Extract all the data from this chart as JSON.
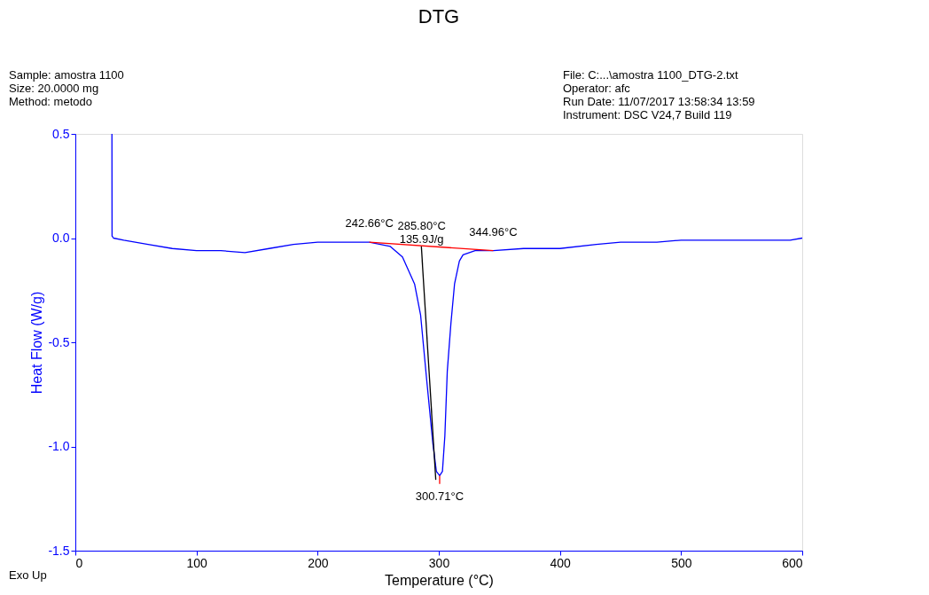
{
  "chart_data": {
    "type": "line",
    "title": "DTG",
    "xlabel": "Temperature (°C)",
    "ylabel": "Heat Flow (W/g)",
    "xlim": [
      0,
      600
    ],
    "xticks": [
      0,
      100,
      200,
      300,
      400,
      500,
      600
    ],
    "ylim": [
      -1.5,
      0.5
    ],
    "yticks": [
      {
        "value": -1.5,
        "label": "-1.5"
      },
      {
        "value": -1.0,
        "label": "-1.0"
      },
      {
        "value": -0.5,
        "label": "-0.5"
      },
      {
        "value": 0,
        "label": "0.0"
      },
      {
        "value": 0.5,
        "label": "0.5"
      }
    ],
    "grid": false,
    "series": [
      {
        "color": "#0000ff",
        "x": [
          30.2,
          30.3,
          31.5,
          40,
          60,
          80,
          100,
          120,
          140,
          160,
          180,
          200,
          220,
          242.66,
          260,
          270,
          280,
          285,
          290,
          295,
          298,
          300.71,
          303,
          305,
          307,
          310,
          313,
          317,
          320,
          330,
          345,
          370,
          400,
          430,
          450,
          480,
          500,
          530,
          560,
          590,
          600
        ],
        "values": [
          0.5,
          0.01,
          0.0,
          -0.01,
          -0.03,
          -0.05,
          -0.06,
          -0.06,
          -0.07,
          -0.05,
          -0.03,
          -0.02,
          -0.02,
          -0.02,
          -0.04,
          -0.09,
          -0.22,
          -0.37,
          -0.68,
          -0.98,
          -1.12,
          -1.14,
          -1.12,
          -0.95,
          -0.64,
          -0.41,
          -0.22,
          -0.11,
          -0.08,
          -0.06,
          -0.06,
          -0.05,
          -0.05,
          -0.03,
          -0.02,
          -0.02,
          -0.01,
          -0.01,
          -0.01,
          -0.01,
          0.0
        ]
      },
      {
        "color": "#ff0000",
        "x": [
          242.66,
          344.96
        ],
        "values": [
          -0.02,
          -0.06
        ]
      },
      {
        "color": "#000000",
        "x": [
          285.6,
          297.5
        ],
        "values": [
          -0.04,
          -1.16
        ]
      },
      {
        "color": "#ff0000",
        "x": [
          300.71,
          300.71
        ],
        "values": [
          -1.14,
          -1.18
        ]
      }
    ],
    "annotations": [
      "Sample: amostra 1100\nSize:  20.0000 mg\nMethod: metodo",
      "File: C:...\\amostra 1100_DTG-2.txt\nOperator: afc\nRun Date: 11/07/2017 13:58:34 13:59\nInstrument: DSC V24,7 Build 119",
      "Exo Up",
      {
        "text": "242.66°C",
        "x": 242.66,
        "y": -0.02
      },
      {
        "text": "285.80°C\n135.9J/g",
        "x": 285.8,
        "y": -0.03
      },
      {
        "text": "344.96°C",
        "x": 344.96,
        "y": -0.06
      },
      {
        "text": "300.71°C",
        "x": 300.71,
        "y": -1.18
      }
    ]
  }
}
